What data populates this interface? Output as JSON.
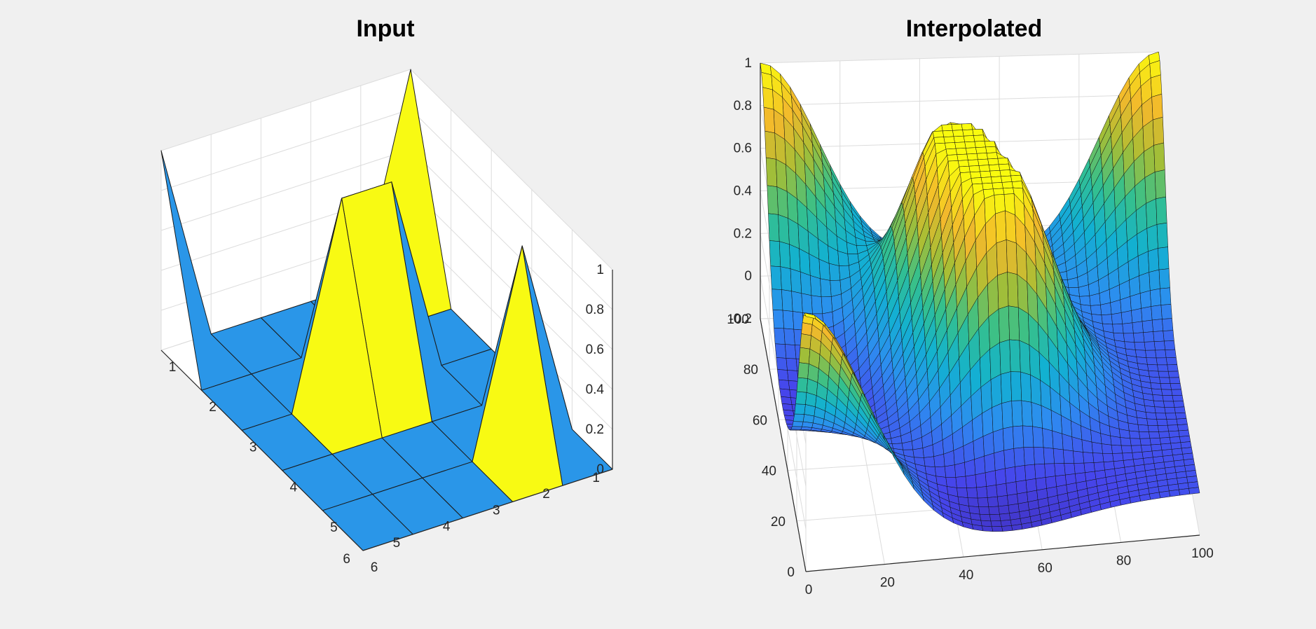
{
  "figure": {
    "background": "#f0f0f0"
  },
  "chart_data": [
    {
      "type": "surface",
      "title": "Input",
      "x": [
        1,
        2,
        3,
        4,
        5,
        6
      ],
      "y": [
        1,
        2,
        3,
        4,
        5,
        6
      ],
      "z": [
        [
          1,
          0,
          0,
          0,
          0,
          1
        ],
        [
          0,
          0,
          0,
          0,
          0,
          0
        ],
        [
          0,
          0,
          1,
          1,
          0,
          0
        ],
        [
          0,
          0,
          0,
          0,
          0,
          0
        ],
        [
          0,
          1,
          0,
          0,
          0,
          0
        ],
        [
          0,
          0,
          0,
          0,
          0,
          0
        ]
      ],
      "xticks": [
        "1",
        "2",
        "3",
        "4",
        "5",
        "6"
      ],
      "yticks": [
        "1",
        "2",
        "3",
        "4",
        "5",
        "6"
      ],
      "zticks": [
        "0",
        "0.2",
        "0.4",
        "0.6",
        "0.8",
        "1"
      ],
      "zlim": [
        0,
        1
      ],
      "colormap": "parula",
      "face_colors": {
        "low": "#2a96e8",
        "high": "#f8fa13"
      },
      "grid": true
    },
    {
      "type": "surface",
      "title": "Interpolated",
      "x_range": [
        0,
        100
      ],
      "y_range": [
        0,
        100
      ],
      "xticks": [
        "0",
        "20",
        "40",
        "60",
        "80",
        "100"
      ],
      "yticks": [
        "0",
        "20",
        "40",
        "60",
        "80",
        "100"
      ],
      "zticks": [
        "-0.2",
        "0",
        "0.2",
        "0.4",
        "0.6",
        "0.8",
        "1"
      ],
      "zlim": [
        -0.2,
        1
      ],
      "peaks": [
        {
          "x": 0,
          "y": 100,
          "z": 1
        },
        {
          "x": 100,
          "y": 100,
          "z": 1
        },
        {
          "x": 45,
          "y": 70,
          "z": 1
        },
        {
          "x": 55,
          "y": 45,
          "z": 1
        },
        {
          "x": 0,
          "y": 0,
          "z": 1
        }
      ],
      "colormap": "parula",
      "colors": [
        "#3e26a8",
        "#4646ec",
        "#2d8df0",
        "#12b1d1",
        "#35c08c",
        "#a6be35",
        "#f3b92c",
        "#f9fb0e"
      ],
      "grid": true
    }
  ]
}
